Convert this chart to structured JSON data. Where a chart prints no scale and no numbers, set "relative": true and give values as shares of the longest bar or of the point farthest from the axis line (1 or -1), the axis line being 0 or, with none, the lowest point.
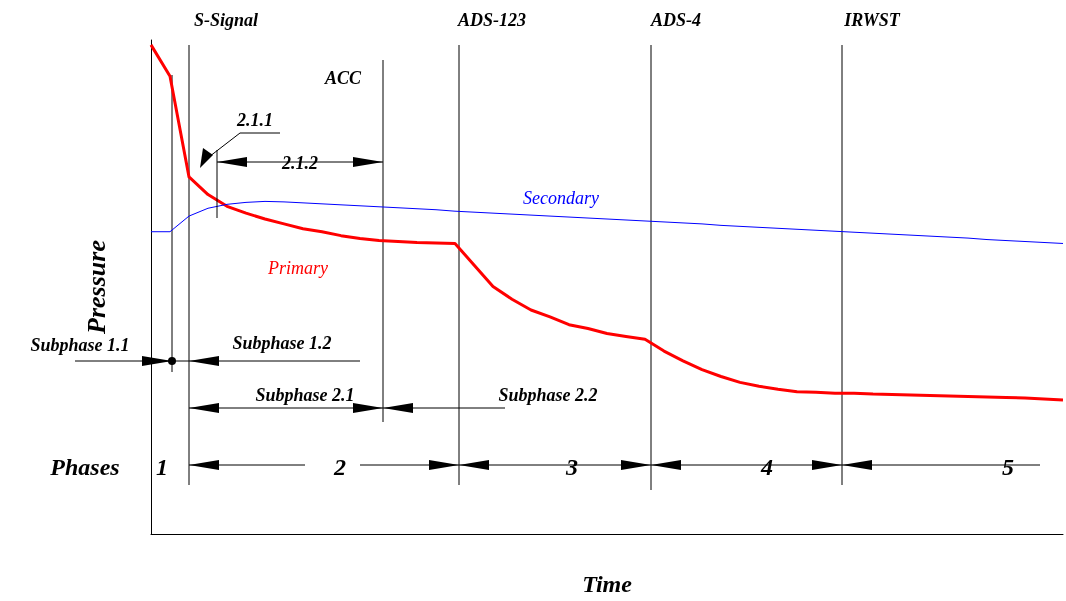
{
  "chart_data": {
    "type": "line",
    "relative": true,
    "xlabel": "Time",
    "ylabel": "Pressure",
    "grid": false,
    "marker": "none",
    "categories": [
      null,
      null,
      null,
      null,
      null,
      null,
      null,
      null,
      null,
      null,
      null,
      null,
      null,
      null,
      null,
      null,
      null,
      null,
      null,
      null,
      null,
      null,
      null,
      null,
      null,
      null,
      null,
      null,
      null,
      null,
      null,
      null,
      null,
      null,
      null,
      null,
      null,
      null,
      null,
      null,
      null,
      null,
      null,
      null,
      null,
      null,
      null,
      null,
      null
    ],
    "series": [
      {
        "name": "Primary",
        "color": "#ff0000",
        "values": [
          1.0,
          0.936,
          0.73,
          0.694,
          0.67,
          0.656,
          0.644,
          0.634,
          0.624,
          0.618,
          0.61,
          0.604,
          0.6,
          0.598,
          0.596,
          0.595,
          0.594,
          0.55,
          0.506,
          0.48,
          0.458,
          0.444,
          0.428,
          0.42,
          0.41,
          0.404,
          0.398,
          0.374,
          0.354,
          0.336,
          0.322,
          0.31,
          0.302,
          0.296,
          0.291,
          0.29,
          0.288,
          0.288,
          0.286,
          0.285,
          0.284,
          0.283,
          0.282,
          0.281,
          0.28,
          0.279,
          0.278,
          0.276,
          0.274
        ]
      },
      {
        "name": "Secondary",
        "color": "#0000ff",
        "values": [
          0.618,
          0.618,
          0.65,
          0.666,
          0.674,
          0.678,
          0.68,
          0.679,
          0.677,
          0.675,
          0.673,
          0.671,
          0.669,
          0.667,
          0.665,
          0.663,
          0.66,
          0.658,
          0.656,
          0.654,
          0.652,
          0.65,
          0.648,
          0.646,
          0.644,
          0.642,
          0.64,
          0.638,
          0.636,
          0.634,
          0.631,
          0.629,
          0.627,
          0.625,
          0.623,
          0.621,
          0.619,
          0.617,
          0.615,
          0.613,
          0.611,
          0.609,
          0.607,
          0.605,
          0.602,
          0.6,
          0.598,
          0.596,
          0.594
        ]
      }
    ],
    "annotations": [
      "Subphase 1.1",
      "Subphase 1.2",
      "Subphase 2.1",
      "Subphase 2.2",
      "2.1.1",
      "2.1.2",
      "Phases",
      "1",
      "2",
      "3",
      "4",
      "5",
      "S-Signal",
      "ACC",
      "ADS-123",
      "ADS-4",
      "IRWST"
    ]
  }
}
